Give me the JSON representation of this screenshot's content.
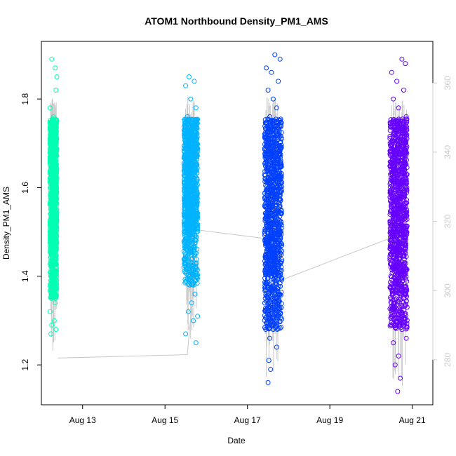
{
  "chart_data": {
    "type": "scatter",
    "title": "ATOM1 Northbound Density_PM1_AMS",
    "xlabel": "Date",
    "ylabel": "Density_PM1_AMS",
    "xlim": [
      "2022-08-12T00:00",
      "2022-08-21T12:00"
    ],
    "ylim": [
      1.11,
      1.93
    ],
    "x_ticks": [
      {
        "label": "Aug 13",
        "value": "2022-08-13T00:00"
      },
      {
        "label": "Aug 15",
        "value": "2022-08-15T00:00"
      },
      {
        "label": "Aug 17",
        "value": "2022-08-17T00:00"
      },
      {
        "label": "Aug 19",
        "value": "2022-08-19T00:00"
      },
      {
        "label": "Aug 21",
        "value": "2022-08-21T00:00"
      }
    ],
    "y_ticks": [
      1.2,
      1.4,
      1.6,
      1.8
    ],
    "y2_ticks": [
      280,
      300,
      320,
      340,
      360
    ],
    "y2lim": [
      267,
      372
    ],
    "grid": false,
    "marker": "open-circle",
    "series": [
      {
        "color": "#00FFB3",
        "x_range": [
          "2022-08-12T05:00",
          "2022-08-12T09:00"
        ],
        "y_core": [
          1.47,
          1.755
        ],
        "points": [
          [
            "2022-08-12T06:00",
            1.89
          ],
          [
            "2022-08-12T08:00",
            1.87
          ],
          [
            "2022-08-12T09:00",
            1.85
          ],
          [
            "2022-08-12T08:30",
            1.82
          ],
          [
            "2022-08-12T05:00",
            1.78
          ],
          [
            "2022-08-12T07:00",
            1.76
          ],
          [
            "2022-08-12T05:30",
            1.74
          ],
          [
            "2022-08-12T06:30",
            1.72
          ],
          [
            "2022-08-12T08:00",
            1.7
          ],
          [
            "2022-08-12T05:00",
            1.68
          ],
          [
            "2022-08-12T07:30",
            1.66
          ],
          [
            "2022-08-12T06:00",
            1.64
          ],
          [
            "2022-08-12T08:30",
            1.62
          ],
          [
            "2022-08-12T05:30",
            1.6
          ],
          [
            "2022-08-12T07:00",
            1.58
          ],
          [
            "2022-08-12T06:30",
            1.55
          ],
          [
            "2022-08-12T08:00",
            1.52
          ],
          [
            "2022-08-12T05:00",
            1.5
          ],
          [
            "2022-08-12T07:30",
            1.47
          ],
          [
            "2022-08-12T06:00",
            1.45
          ],
          [
            "2022-08-12T08:30",
            1.42
          ],
          [
            "2022-08-12T05:30",
            1.4
          ],
          [
            "2022-08-12T07:00",
            1.38
          ],
          [
            "2022-08-12T06:30",
            1.36
          ],
          [
            "2022-08-12T08:00",
            1.34
          ],
          [
            "2022-08-12T05:00",
            1.32
          ],
          [
            "2022-08-12T07:30",
            1.3
          ],
          [
            "2022-08-12T06:00",
            1.29
          ],
          [
            "2022-08-12T08:30",
            1.28
          ],
          [
            "2022-08-12T05:30",
            1.27
          ],
          [
            "2022-08-12T07:00",
            1.36
          ],
          [
            "2022-08-12T06:30",
            1.41
          ]
        ]
      },
      {
        "color": "#00B3FF",
        "x_range": [
          "2022-08-15T11:00",
          "2022-08-15T19:00"
        ],
        "y_core": [
          1.5,
          1.755
        ],
        "points": [
          [
            "2022-08-15T14:00",
            1.85
          ],
          [
            "2022-08-15T17:00",
            1.84
          ],
          [
            "2022-08-15T12:00",
            1.83
          ],
          [
            "2022-08-15T15:00",
            1.8
          ],
          [
            "2022-08-15T18:00",
            1.78
          ],
          [
            "2022-08-15T13:00",
            1.76
          ],
          [
            "2022-08-15T16:00",
            1.74
          ],
          [
            "2022-08-15T11:30",
            1.72
          ],
          [
            "2022-08-15T18:30",
            1.7
          ],
          [
            "2022-08-15T14:30",
            1.68
          ],
          [
            "2022-08-15T12:30",
            1.66
          ],
          [
            "2022-08-15T17:30",
            1.64
          ],
          [
            "2022-08-15T15:30",
            1.62
          ],
          [
            "2022-08-15T13:30",
            1.6
          ],
          [
            "2022-08-15T16:30",
            1.58
          ],
          [
            "2022-08-15T12:00",
            1.56
          ],
          [
            "2022-08-15T18:00",
            1.54
          ],
          [
            "2022-08-15T14:00",
            1.52
          ],
          [
            "2022-08-15T17:00",
            1.5
          ],
          [
            "2022-08-15T13:00",
            1.48
          ],
          [
            "2022-08-15T15:00",
            1.46
          ],
          [
            "2022-08-15T16:00",
            1.44
          ],
          [
            "2022-08-15T12:30",
            1.42
          ],
          [
            "2022-08-15T18:30",
            1.4
          ],
          [
            "2022-08-15T14:30",
            1.38
          ],
          [
            "2022-08-15T17:30",
            1.36
          ],
          [
            "2022-08-15T15:30",
            1.34
          ],
          [
            "2022-08-15T13:30",
            1.32
          ],
          [
            "2022-08-15T16:30",
            1.3
          ],
          [
            "2022-08-15T12:00",
            1.27
          ],
          [
            "2022-08-15T18:00",
            1.25
          ],
          [
            "2022-08-15T19:00",
            1.31
          ]
        ]
      },
      {
        "color": "#0040FF",
        "x_range": [
          "2022-08-17T10:00",
          "2022-08-17T20:00"
        ],
        "y_core": [
          1.4,
          1.755
        ],
        "points": [
          [
            "2022-08-17T16:00",
            1.9
          ],
          [
            "2022-08-17T19:00",
            1.89
          ],
          [
            "2022-08-17T11:00",
            1.87
          ],
          [
            "2022-08-17T14:00",
            1.86
          ],
          [
            "2022-08-17T18:00",
            1.84
          ],
          [
            "2022-08-17T12:00",
            1.82
          ],
          [
            "2022-08-17T15:00",
            1.8
          ],
          [
            "2022-08-17T17:00",
            1.78
          ],
          [
            "2022-08-17T13:00",
            1.76
          ],
          [
            "2022-08-17T19:30",
            1.74
          ],
          [
            "2022-08-17T10:30",
            1.72
          ],
          [
            "2022-08-17T16:30",
            1.7
          ],
          [
            "2022-08-17T14:30",
            1.67
          ],
          [
            "2022-08-17T11:30",
            1.64
          ],
          [
            "2022-08-17T18:30",
            1.61
          ],
          [
            "2022-08-17T15:30",
            1.58
          ],
          [
            "2022-08-17T12:30",
            1.55
          ],
          [
            "2022-08-17T17:30",
            1.52
          ],
          [
            "2022-08-17T13:30",
            1.49
          ],
          [
            "2022-08-17T19:00",
            1.46
          ],
          [
            "2022-08-17T11:00",
            1.43
          ],
          [
            "2022-08-17T16:00",
            1.4
          ],
          [
            "2022-08-17T14:00",
            1.37
          ],
          [
            "2022-08-17T12:00",
            1.34
          ],
          [
            "2022-08-17T18:00",
            1.31
          ],
          [
            "2022-08-17T15:00",
            1.28
          ],
          [
            "2022-08-17T13:00",
            1.26
          ],
          [
            "2022-08-17T17:00",
            1.24
          ],
          [
            "2022-08-17T12:30",
            1.21
          ],
          [
            "2022-08-17T13:30",
            1.19
          ],
          [
            "2022-08-17T12:00",
            1.16
          ],
          [
            "2022-08-17T16:30",
            1.35
          ]
        ]
      },
      {
        "color": "#6600FF",
        "x_range": [
          "2022-08-20T11:00",
          "2022-08-20T21:00"
        ],
        "y_core": [
          1.4,
          1.755
        ],
        "points": [
          [
            "2022-08-20T18:00",
            1.89
          ],
          [
            "2022-08-20T20:00",
            1.88
          ],
          [
            "2022-08-20T12:00",
            1.86
          ],
          [
            "2022-08-20T15:00",
            1.84
          ],
          [
            "2022-08-20T19:00",
            1.82
          ],
          [
            "2022-08-20T13:00",
            1.8
          ],
          [
            "2022-08-20T16:00",
            1.78
          ],
          [
            "2022-08-20T20:30",
            1.76
          ],
          [
            "2022-08-20T11:30",
            1.74
          ],
          [
            "2022-08-20T17:00",
            1.71
          ],
          [
            "2022-08-20T14:00",
            1.68
          ],
          [
            "2022-08-20T19:30",
            1.65
          ],
          [
            "2022-08-20T12:30",
            1.62
          ],
          [
            "2022-08-20T18:30",
            1.59
          ],
          [
            "2022-08-20T15:30",
            1.56
          ],
          [
            "2022-08-20T13:30",
            1.53
          ],
          [
            "2022-08-20T20:00",
            1.5
          ],
          [
            "2022-08-20T16:30",
            1.47
          ],
          [
            "2022-08-20T11:00",
            1.44
          ],
          [
            "2022-08-20T17:30",
            1.41
          ],
          [
            "2022-08-20T14:30",
            1.38
          ],
          [
            "2022-08-20T19:00",
            1.35
          ],
          [
            "2022-08-20T12:00",
            1.32
          ],
          [
            "2022-08-20T15:00",
            1.3
          ],
          [
            "2022-08-20T18:00",
            1.28
          ],
          [
            "2022-08-20T13:00",
            1.25
          ],
          [
            "2022-08-20T16:00",
            1.22
          ],
          [
            "2022-08-20T14:00",
            1.2
          ],
          [
            "2022-08-20T17:00",
            1.17
          ],
          [
            "2022-08-20T15:30",
            1.14
          ],
          [
            "2022-08-20T20:30",
            1.26
          ],
          [
            "2022-08-20T21:00",
            1.33
          ]
        ]
      }
    ],
    "secondary_line": {
      "color": "#c8c8c8",
      "points": [
        [
          "2022-08-12T09:30",
          280.5
        ],
        [
          "2022-08-15T13:00",
          281.5
        ],
        [
          "2022-08-15T19:30",
          317.5
        ],
        [
          "2022-08-17T11:00",
          315.0
        ],
        [
          "2022-08-17T17:00",
          302.5
        ],
        [
          "2022-08-20T13:00",
          315.5
        ]
      ]
    }
  }
}
